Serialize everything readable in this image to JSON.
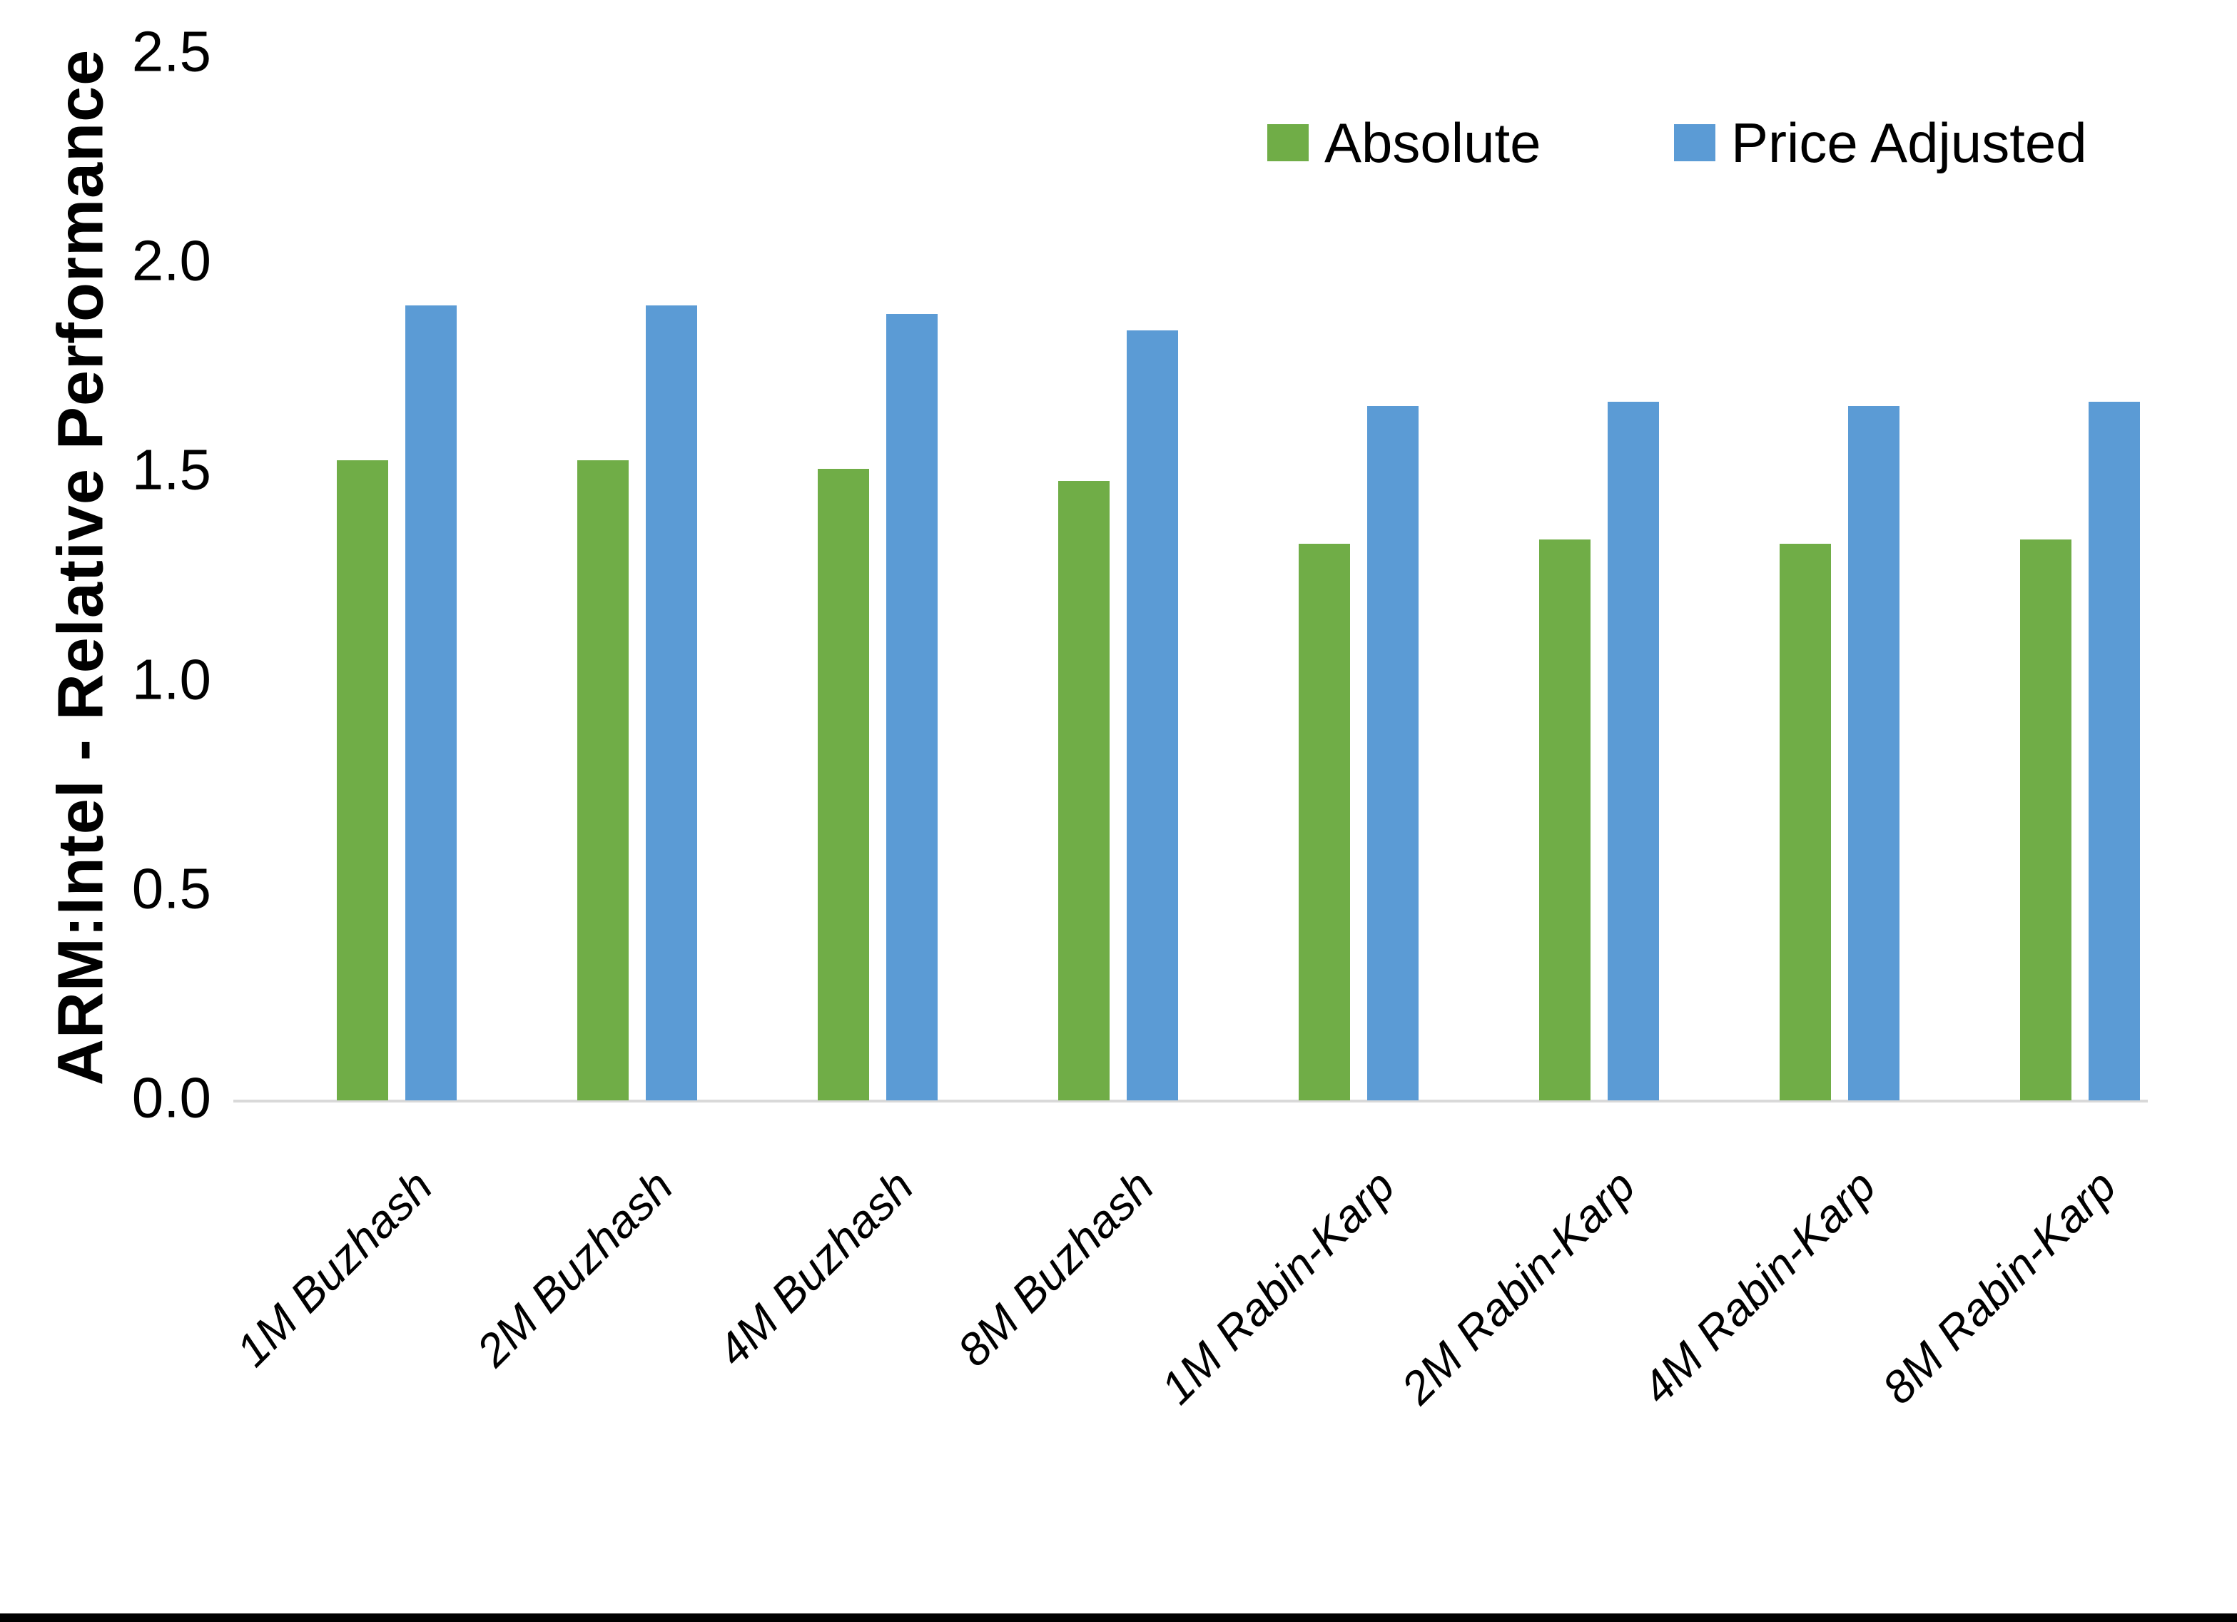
{
  "chart_data": {
    "type": "bar",
    "title": "",
    "xlabel": "",
    "ylabel": "ARM:Intel - Relative Performance",
    "categories": [
      "1M Buzhash",
      "2M Buzhash",
      "4M Buzhash",
      "8M Buzhash",
      "1M Rabin-Karp",
      "2M Rabin-Karp",
      "4M Rabin-Karp",
      "8M Rabin-Karp"
    ],
    "series": [
      {
        "name": "Absolute",
        "color": "#70AD47",
        "values": [
          1.53,
          1.53,
          1.51,
          1.48,
          1.33,
          1.34,
          1.33,
          1.34
        ]
      },
      {
        "name": "Price Adjusted",
        "color": "#5B9BD5",
        "values": [
          1.9,
          1.9,
          1.88,
          1.84,
          1.66,
          1.67,
          1.66,
          1.67
        ]
      }
    ],
    "ylim": [
      0.0,
      2.5
    ],
    "yticks": [
      0.0,
      0.5,
      1.0,
      1.5,
      2.0,
      2.5
    ],
    "ytick_labels": [
      "0.0",
      "0.5",
      "1.0",
      "1.5",
      "2.0",
      "2.5"
    ],
    "grid": false,
    "legend_position": "top-right"
  },
  "colors": {
    "background": "#FFFFFF",
    "axis_line": "#D9D9D9",
    "text": "#000000",
    "bottom_border": "#000000"
  }
}
